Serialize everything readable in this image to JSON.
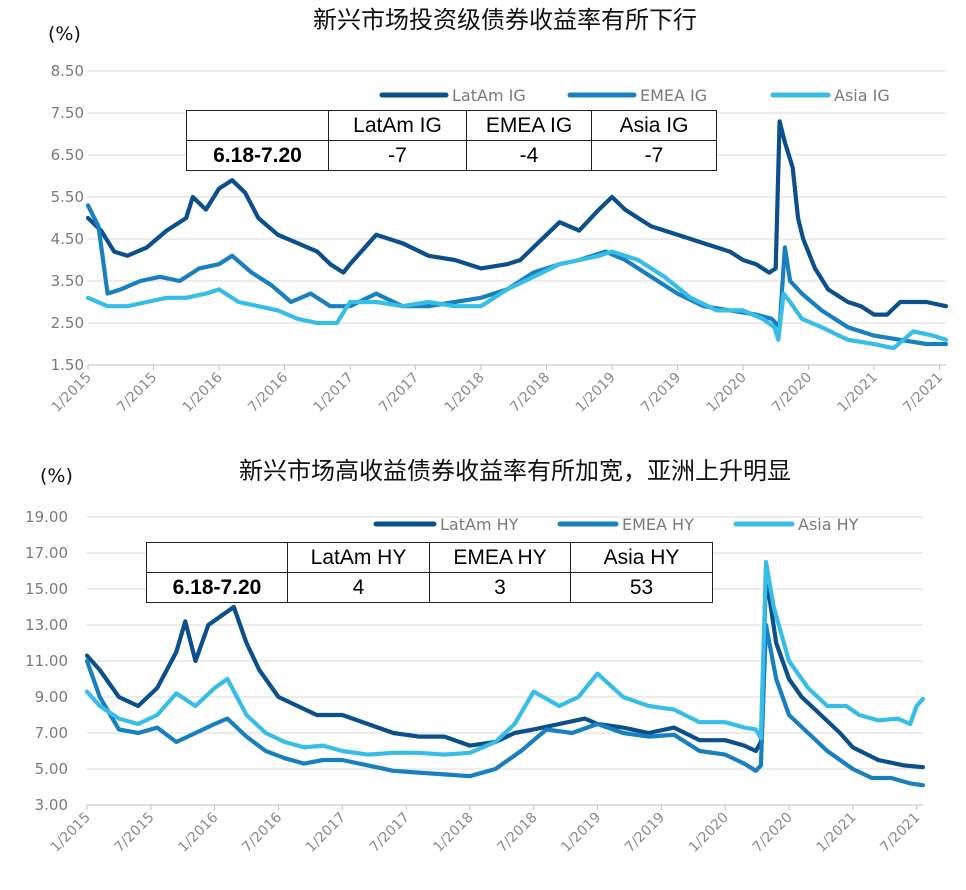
{
  "chart_data": [
    {
      "type": "line",
      "title": "新兴市场投资级债券收益率有所下行",
      "unit_label": "(%)",
      "ylim": [
        1.5,
        8.5
      ],
      "yticks": [
        "8.50",
        "7.50",
        "6.50",
        "5.50",
        "4.50",
        "3.50",
        "2.50",
        "1.50"
      ],
      "ytick_values": [
        8.5,
        7.5,
        6.5,
        5.5,
        4.5,
        3.5,
        2.5,
        1.5
      ],
      "x_ticks": [
        "1/2015",
        "7/2015",
        "1/2016",
        "7/2016",
        "1/2017",
        "7/2017",
        "1/2018",
        "7/2018",
        "1/2019",
        "7/2019",
        "1/2020",
        "7/2020",
        "1/2021",
        "7/2021"
      ],
      "x_tick_values": [
        2015.0,
        2015.5,
        2016.0,
        2016.5,
        2017.0,
        2017.5,
        2018.0,
        2018.5,
        2019.0,
        2019.5,
        2020.0,
        2020.5,
        2021.0,
        2021.5
      ],
      "xlim": [
        2015.0,
        2021.55
      ],
      "grid": true,
      "legend": "top-right",
      "series": [
        {
          "name": "LatAm IG",
          "color": "#0b4f8c",
          "x": [
            2015.0,
            2015.1,
            2015.2,
            2015.3,
            2015.45,
            2015.6,
            2015.75,
            2015.8,
            2015.9,
            2016.0,
            2016.1,
            2016.2,
            2016.3,
            2016.45,
            2016.6,
            2016.75,
            2016.85,
            2016.95,
            2017.0,
            2017.2,
            2017.4,
            2017.6,
            2017.8,
            2018.0,
            2018.2,
            2018.3,
            2018.5,
            2018.6,
            2018.75,
            2018.9,
            2019.0,
            2019.1,
            2019.3,
            2019.5,
            2019.7,
            2019.9,
            2020.0,
            2020.1,
            2020.2,
            2020.25,
            2020.28,
            2020.32,
            2020.38,
            2020.42,
            2020.46,
            2020.55,
            2020.65,
            2020.8,
            2020.9,
            2021.0,
            2021.1,
            2021.2,
            2021.3,
            2021.4,
            2021.55
          ],
          "values": [
            5.0,
            4.7,
            4.2,
            4.1,
            4.3,
            4.7,
            5.0,
            5.5,
            5.2,
            5.7,
            5.9,
            5.6,
            5.0,
            4.6,
            4.4,
            4.2,
            3.9,
            3.7,
            3.9,
            4.6,
            4.4,
            4.1,
            4.0,
            3.8,
            3.9,
            4.0,
            4.6,
            4.9,
            4.7,
            5.2,
            5.5,
            5.2,
            4.8,
            4.6,
            4.4,
            4.2,
            4.0,
            3.9,
            3.7,
            3.8,
            7.3,
            6.8,
            6.2,
            5.0,
            4.5,
            3.8,
            3.3,
            3.0,
            2.9,
            2.7,
            2.7,
            3.0,
            3.0,
            3.0,
            2.9
          ]
        },
        {
          "name": "EMEA IG",
          "color": "#1880c0",
          "x": [
            2015.0,
            2015.08,
            2015.15,
            2015.25,
            2015.4,
            2015.55,
            2015.7,
            2015.85,
            2016.0,
            2016.1,
            2016.25,
            2016.4,
            2016.55,
            2016.7,
            2016.85,
            2017.0,
            2017.2,
            2017.4,
            2017.6,
            2017.8,
            2018.0,
            2018.2,
            2018.4,
            2018.6,
            2018.75,
            2018.95,
            2019.1,
            2019.3,
            2019.5,
            2019.7,
            2019.9,
            2020.1,
            2020.22,
            2020.28,
            2020.32,
            2020.36,
            2020.45,
            2020.6,
            2020.8,
            2021.0,
            2021.2,
            2021.4,
            2021.55
          ],
          "values": [
            5.3,
            4.8,
            3.2,
            3.3,
            3.5,
            3.6,
            3.5,
            3.8,
            3.9,
            4.1,
            3.7,
            3.4,
            3.0,
            3.2,
            2.9,
            2.9,
            3.2,
            2.9,
            2.9,
            3.0,
            3.1,
            3.3,
            3.7,
            3.9,
            4.0,
            4.2,
            4.0,
            3.6,
            3.2,
            2.9,
            2.8,
            2.7,
            2.6,
            2.4,
            4.3,
            3.5,
            3.2,
            2.8,
            2.4,
            2.2,
            2.1,
            2.0,
            2.0
          ]
        },
        {
          "name": "Asia IG",
          "color": "#38bde8",
          "x": [
            2015.0,
            2015.15,
            2015.3,
            2015.45,
            2015.6,
            2015.75,
            2015.9,
            2016.0,
            2016.15,
            2016.3,
            2016.45,
            2016.6,
            2016.75,
            2016.9,
            2017.0,
            2017.2,
            2017.4,
            2017.6,
            2017.8,
            2018.0,
            2018.2,
            2018.4,
            2018.6,
            2018.75,
            2018.9,
            2019.0,
            2019.2,
            2019.4,
            2019.6,
            2019.8,
            2020.0,
            2020.15,
            2020.24,
            2020.27,
            2020.31,
            2020.36,
            2020.45,
            2020.6,
            2020.8,
            2021.0,
            2021.15,
            2021.3,
            2021.45,
            2021.55
          ],
          "values": [
            3.1,
            2.9,
            2.9,
            3.0,
            3.1,
            3.1,
            3.2,
            3.3,
            3.0,
            2.9,
            2.8,
            2.6,
            2.5,
            2.5,
            3.0,
            3.0,
            2.9,
            3.0,
            2.9,
            2.9,
            3.3,
            3.6,
            3.9,
            4.0,
            4.1,
            4.2,
            4.0,
            3.6,
            3.1,
            2.8,
            2.8,
            2.6,
            2.4,
            2.1,
            3.2,
            3.0,
            2.6,
            2.4,
            2.1,
            2.0,
            1.9,
            2.3,
            2.2,
            2.1
          ]
        }
      ],
      "table": {
        "headers": [
          "",
          "LatAm IG",
          "EMEA IG",
          "Asia IG"
        ],
        "rows": [
          [
            "6.18-7.20",
            "-7",
            "-4",
            "-7"
          ]
        ]
      }
    },
    {
      "type": "line",
      "title": "新兴市场高收益债券收益率有所加宽，亚洲上升明显",
      "unit_label": "(%)",
      "ylim": [
        3.0,
        19.0
      ],
      "yticks": [
        "19.00",
        "17.00",
        "15.00",
        "13.00",
        "11.00",
        "9.00",
        "7.00",
        "5.00",
        "3.00"
      ],
      "ytick_values": [
        19,
        17,
        15,
        13,
        11,
        9,
        7,
        5,
        3
      ],
      "x_ticks": [
        "1/2015",
        "7/2015",
        "1/2016",
        "7/2016",
        "1/2017",
        "7/2017",
        "1/2018",
        "7/2018",
        "1/2019",
        "7/2019",
        "1/2020",
        "7/2020",
        "1/2021",
        "7/2021"
      ],
      "x_tick_values": [
        2015.0,
        2015.5,
        2016.0,
        2016.5,
        2017.0,
        2017.5,
        2018.0,
        2018.5,
        2019.0,
        2019.5,
        2020.0,
        2020.5,
        2021.0,
        2021.5
      ],
      "xlim": [
        2015.0,
        2021.55
      ],
      "grid": true,
      "legend": "top-right",
      "series": [
        {
          "name": "LatAm HY",
          "color": "#0b4f8c",
          "x": [
            2015.0,
            2015.1,
            2015.25,
            2015.4,
            2015.55,
            2015.7,
            2015.77,
            2015.85,
            2015.95,
            2016.05,
            2016.15,
            2016.25,
            2016.35,
            2016.5,
            2016.65,
            2016.8,
            2017.0,
            2017.2,
            2017.4,
            2017.6,
            2017.8,
            2018.0,
            2018.2,
            2018.35,
            2018.5,
            2018.7,
            2018.9,
            2019.0,
            2019.2,
            2019.4,
            2019.6,
            2019.8,
            2020.0,
            2020.15,
            2020.24,
            2020.28,
            2020.32,
            2020.4,
            2020.5,
            2020.6,
            2020.75,
            2020.9,
            2021.0,
            2021.2,
            2021.4,
            2021.55
          ],
          "values": [
            11.3,
            10.5,
            9.0,
            8.5,
            9.5,
            11.5,
            13.2,
            11.0,
            13.0,
            13.5,
            14.0,
            12.0,
            10.5,
            9.0,
            8.5,
            8.0,
            8.0,
            7.5,
            7.0,
            6.8,
            6.8,
            6.3,
            6.5,
            7.0,
            7.2,
            7.5,
            7.8,
            7.5,
            7.3,
            7.0,
            7.3,
            6.6,
            6.6,
            6.3,
            6.0,
            6.5,
            15.8,
            12.0,
            10.0,
            9.0,
            8.0,
            7.0,
            6.2,
            5.5,
            5.2,
            5.1
          ]
        },
        {
          "name": "EMEA HY",
          "color": "#1880c0",
          "x": [
            2015.0,
            2015.1,
            2015.25,
            2015.4,
            2015.55,
            2015.7,
            2015.85,
            2016.0,
            2016.1,
            2016.25,
            2016.4,
            2016.55,
            2016.7,
            2016.85,
            2017.0,
            2017.2,
            2017.4,
            2017.6,
            2017.8,
            2018.0,
            2018.2,
            2018.4,
            2018.6,
            2018.8,
            2019.0,
            2019.2,
            2019.4,
            2019.6,
            2019.8,
            2020.0,
            2020.15,
            2020.24,
            2020.28,
            2020.32,
            2020.4,
            2020.5,
            2020.65,
            2020.8,
            2021.0,
            2021.15,
            2021.3,
            2021.45,
            2021.55
          ],
          "values": [
            11.0,
            9.0,
            7.2,
            7.0,
            7.3,
            6.5,
            7.0,
            7.5,
            7.8,
            6.8,
            6.0,
            5.6,
            5.3,
            5.5,
            5.5,
            5.2,
            4.9,
            4.8,
            4.7,
            4.6,
            5.0,
            6.0,
            7.2,
            7.0,
            7.5,
            7.0,
            6.8,
            6.9,
            6.0,
            5.8,
            5.3,
            4.9,
            5.2,
            13.0,
            10.0,
            8.0,
            7.0,
            6.0,
            5.0,
            4.5,
            4.5,
            4.2,
            4.1
          ]
        },
        {
          "name": "Asia HY",
          "color": "#38bde8",
          "x": [
            2015.0,
            2015.1,
            2015.25,
            2015.4,
            2015.55,
            2015.7,
            2015.85,
            2016.0,
            2016.1,
            2016.25,
            2016.4,
            2016.55,
            2016.7,
            2016.85,
            2017.0,
            2017.2,
            2017.4,
            2017.6,
            2017.8,
            2018.0,
            2018.2,
            2018.35,
            2018.5,
            2018.7,
            2018.85,
            2019.0,
            2019.2,
            2019.4,
            2019.6,
            2019.8,
            2020.0,
            2020.15,
            2020.24,
            2020.28,
            2020.32,
            2020.38,
            2020.5,
            2020.65,
            2020.8,
            2020.95,
            2021.05,
            2021.2,
            2021.35,
            2021.45,
            2021.5,
            2021.55
          ],
          "values": [
            9.3,
            8.5,
            7.8,
            7.5,
            8.0,
            9.2,
            8.5,
            9.5,
            10.0,
            8.0,
            7.0,
            6.5,
            6.2,
            6.3,
            6.0,
            5.8,
            5.9,
            5.9,
            5.8,
            5.9,
            6.5,
            7.5,
            9.3,
            8.5,
            9.0,
            10.3,
            9.0,
            8.5,
            8.3,
            7.6,
            7.6,
            7.3,
            7.2,
            6.7,
            16.5,
            14.0,
            11.0,
            9.5,
            8.5,
            8.5,
            8.0,
            7.7,
            7.8,
            7.5,
            8.5,
            8.9
          ]
        }
      ],
      "table": {
        "headers": [
          "",
          "LatAm HY",
          "EMEA HY",
          "Asia HY"
        ],
        "rows": [
          [
            "6.18-7.20",
            "4",
            "3",
            "53"
          ]
        ]
      }
    }
  ]
}
